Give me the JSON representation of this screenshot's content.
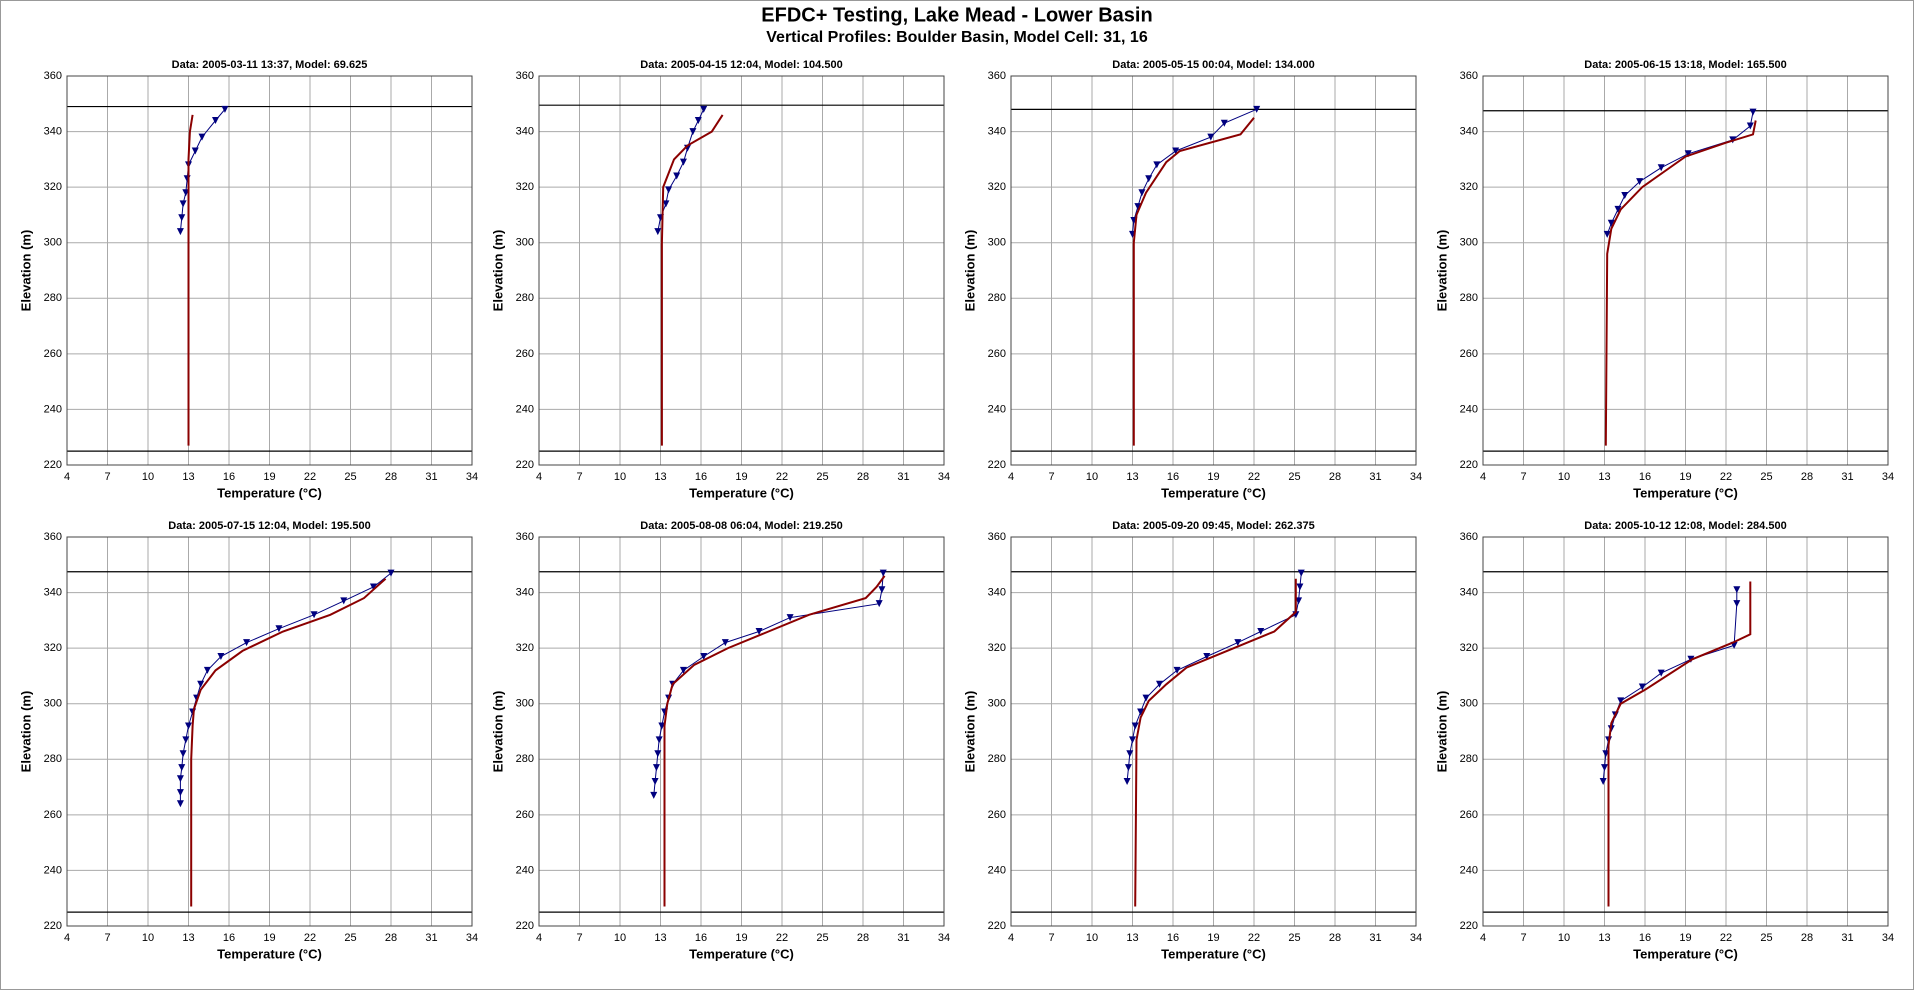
{
  "header": {
    "title": "EFDC+ Testing, Lake Mead - Lower Basin",
    "subtitle": "Vertical Profiles: Boulder Basin, Model Cell: 31, 16"
  },
  "chart_data": [
    {
      "type": "line",
      "title": "Data: 2005-03-11 13:37, Model: 69.625",
      "xlabel": "Temperature (°C)",
      "ylabel": "Elevation (m)",
      "xlim": [
        4,
        34
      ],
      "ylim": [
        220,
        360
      ],
      "xticks": [
        4,
        7,
        10,
        13,
        16,
        19,
        22,
        25,
        28,
        31,
        34
      ],
      "yticks": [
        220,
        240,
        260,
        280,
        300,
        320,
        340,
        360
      ],
      "grid": true,
      "reference_lines": [
        349,
        225
      ],
      "series": [
        {
          "color": "#00007f",
          "marker": "triangle-down",
          "x": [
            15.7,
            15.0,
            14.0,
            13.5,
            13.0,
            12.9,
            12.8,
            12.6,
            12.5,
            12.4
          ],
          "y": [
            348,
            344,
            338,
            333,
            328,
            323,
            318,
            314,
            309,
            304
          ]
        },
        {
          "color": "#8b0000",
          "x": [
            13.3,
            13.1,
            13.0,
            13.0,
            13.0
          ],
          "y": [
            346,
            340,
            330,
            300,
            227
          ]
        }
      ]
    },
    {
      "type": "line",
      "title": "Data: 2005-04-15 12:04, Model: 104.500",
      "xlabel": "Temperature (°C)",
      "ylabel": "Elevation (m)",
      "xlim": [
        4,
        34
      ],
      "ylim": [
        220,
        360
      ],
      "xticks": [
        4,
        7,
        10,
        13,
        16,
        19,
        22,
        25,
        28,
        31,
        34
      ],
      "yticks": [
        220,
        240,
        260,
        280,
        300,
        320,
        340,
        360
      ],
      "grid": true,
      "reference_lines": [
        349.5,
        225
      ],
      "series": [
        {
          "color": "#00007f",
          "marker": "triangle-down",
          "x": [
            16.2,
            15.8,
            15.4,
            15.0,
            14.7,
            14.2,
            13.6,
            13.4,
            13.0,
            12.8
          ],
          "y": [
            348,
            344,
            340,
            334,
            329,
            324,
            319,
            314,
            309,
            304
          ]
        },
        {
          "color": "#8b0000",
          "x": [
            17.6,
            16.8,
            15.0,
            14.0,
            13.2,
            13.1,
            13.1
          ],
          "y": [
            346,
            340,
            335,
            330,
            320,
            300,
            227
          ]
        }
      ]
    },
    {
      "type": "line",
      "title": "Data: 2005-05-15 00:04, Model: 134.000",
      "xlabel": "Temperature (°C)",
      "ylabel": "Elevation (m)",
      "xlim": [
        4,
        34
      ],
      "ylim": [
        220,
        360
      ],
      "xticks": [
        4,
        7,
        10,
        13,
        16,
        19,
        22,
        25,
        28,
        31,
        34
      ],
      "yticks": [
        220,
        240,
        260,
        280,
        300,
        320,
        340,
        360
      ],
      "grid": true,
      "reference_lines": [
        348,
        225
      ],
      "series": [
        {
          "color": "#00007f",
          "marker": "triangle-down",
          "x": [
            22.2,
            19.8,
            18.8,
            16.2,
            14.8,
            14.2,
            13.7,
            13.4,
            13.1,
            13.0
          ],
          "y": [
            348,
            343,
            338,
            333,
            328,
            323,
            318,
            313,
            308,
            303
          ]
        },
        {
          "color": "#8b0000",
          "x": [
            22.0,
            21.0,
            16.5,
            15.5,
            14.0,
            13.3,
            13.1,
            13.1
          ],
          "y": [
            345,
            339,
            333,
            329,
            318,
            310,
            300,
            227
          ]
        }
      ]
    },
    {
      "type": "line",
      "title": "Data: 2005-06-15 13:18, Model: 165.500",
      "xlabel": "Temperature (°C)",
      "ylabel": "Elevation (m)",
      "xlim": [
        4,
        34
      ],
      "ylim": [
        220,
        360
      ],
      "xticks": [
        4,
        7,
        10,
        13,
        16,
        19,
        22,
        25,
        28,
        31,
        34
      ],
      "yticks": [
        220,
        240,
        260,
        280,
        300,
        320,
        340,
        360
      ],
      "grid": true,
      "reference_lines": [
        347.5,
        225
      ],
      "series": [
        {
          "color": "#00007f",
          "marker": "triangle-down",
          "x": [
            24.0,
            23.8,
            22.5,
            19.2,
            17.2,
            15.6,
            14.5,
            14.0,
            13.5,
            13.2
          ],
          "y": [
            347,
            342,
            337,
            332,
            327,
            322,
            317,
            312,
            307,
            303
          ]
        },
        {
          "color": "#8b0000",
          "x": [
            24.2,
            24.0,
            22.0,
            19.0,
            15.8,
            14.2,
            13.5,
            13.2,
            13.1
          ],
          "y": [
            344,
            339,
            336,
            331,
            320,
            312,
            305,
            296,
            227
          ]
        }
      ]
    },
    {
      "type": "line",
      "title": "Data: 2005-07-15 12:04, Model: 195.500",
      "xlabel": "Temperature (°C)",
      "ylabel": "Elevation (m)",
      "xlim": [
        4,
        34
      ],
      "ylim": [
        220,
        360
      ],
      "xticks": [
        4,
        7,
        10,
        13,
        16,
        19,
        22,
        25,
        28,
        31,
        34
      ],
      "yticks": [
        220,
        240,
        260,
        280,
        300,
        320,
        340,
        360
      ],
      "grid": true,
      "reference_lines": [
        347.5,
        225
      ],
      "series": [
        {
          "color": "#00007f",
          "marker": "triangle-down",
          "x": [
            28.0,
            26.7,
            24.5,
            22.3,
            19.7,
            17.3,
            15.4,
            14.4,
            13.9,
            13.6,
            13.3,
            13.0,
            12.8,
            12.6,
            12.5,
            12.4,
            12.4,
            12.4
          ],
          "y": [
            347,
            342,
            337,
            332,
            327,
            322,
            317,
            312,
            307,
            302,
            297,
            292,
            287,
            282,
            277,
            273,
            268,
            264
          ]
        },
        {
          "color": "#8b0000",
          "x": [
            27.6,
            26.0,
            23.5,
            20.0,
            17.0,
            15.0,
            13.9,
            13.4,
            13.3,
            13.2,
            13.2
          ],
          "y": [
            345,
            338,
            332,
            326,
            319,
            312,
            305,
            298,
            292,
            280,
            227
          ]
        }
      ]
    },
    {
      "type": "line",
      "title": "Data: 2005-08-08 06:04, Model: 219.250",
      "xlabel": "Temperature (°C)",
      "ylabel": "Elevation (m)",
      "xlim": [
        4,
        34
      ],
      "ylim": [
        220,
        360
      ],
      "xticks": [
        4,
        7,
        10,
        13,
        16,
        19,
        22,
        25,
        28,
        31,
        34
      ],
      "yticks": [
        220,
        240,
        260,
        280,
        300,
        320,
        340,
        360
      ],
      "grid": true,
      "reference_lines": [
        347.5,
        225
      ],
      "series": [
        {
          "color": "#00007f",
          "marker": "triangle-down",
          "x": [
            29.5,
            29.4,
            29.2,
            22.6,
            20.3,
            17.8,
            16.2,
            14.7,
            13.9,
            13.6,
            13.3,
            13.1,
            12.9,
            12.8,
            12.7,
            12.6,
            12.5
          ],
          "y": [
            347,
            341,
            336,
            331,
            326,
            322,
            317,
            312,
            307,
            302,
            297,
            292,
            287,
            282,
            277,
            272,
            267
          ]
        },
        {
          "color": "#8b0000",
          "x": [
            29.6,
            29.0,
            28.2,
            24.0,
            21.0,
            18.0,
            15.5,
            13.9,
            13.5,
            13.3,
            13.3
          ],
          "y": [
            346,
            342,
            338,
            332,
            326,
            320,
            314,
            307,
            300,
            292,
            227
          ]
        }
      ]
    },
    {
      "type": "line",
      "title": "Data: 2005-09-20 09:45, Model: 262.375",
      "xlabel": "Temperature (°C)",
      "ylabel": "Elevation (m)",
      "xlim": [
        4,
        34
      ],
      "ylim": [
        220,
        360
      ],
      "xticks": [
        4,
        7,
        10,
        13,
        16,
        19,
        22,
        25,
        28,
        31,
        34
      ],
      "yticks": [
        220,
        240,
        260,
        280,
        300,
        320,
        340,
        360
      ],
      "grid": true,
      "reference_lines": [
        347.5,
        225
      ],
      "series": [
        {
          "color": "#00007f",
          "marker": "triangle-down",
          "x": [
            25.5,
            25.4,
            25.3,
            25.1,
            22.5,
            20.8,
            18.5,
            16.3,
            15.0,
            14.0,
            13.6,
            13.2,
            13.0,
            12.8,
            12.7,
            12.6
          ],
          "y": [
            347,
            342,
            337,
            332,
            326,
            322,
            317,
            312,
            307,
            302,
            297,
            292,
            287,
            282,
            277,
            272
          ]
        },
        {
          "color": "#8b0000",
          "x": [
            25.1,
            25.1,
            23.5,
            20.0,
            17.0,
            15.5,
            14.2,
            13.6,
            13.3,
            13.2
          ],
          "y": [
            345,
            333,
            326,
            319,
            313,
            307,
            301,
            295,
            287,
            227
          ]
        }
      ]
    },
    {
      "type": "line",
      "title": "Data: 2005-10-12 12:08, Model: 284.500",
      "xlabel": "Temperature (°C)",
      "ylabel": "Elevation (m)",
      "xlim": [
        4,
        34
      ],
      "ylim": [
        220,
        360
      ],
      "xticks": [
        4,
        7,
        10,
        13,
        16,
        19,
        22,
        25,
        28,
        31,
        34
      ],
      "yticks": [
        220,
        240,
        260,
        280,
        300,
        320,
        340,
        360
      ],
      "grid": true,
      "reference_lines": [
        347.5,
        225
      ],
      "series": [
        {
          "color": "#00007f",
          "marker": "triangle-down",
          "x": [
            22.8,
            22.8,
            22.6,
            19.4,
            17.2,
            15.8,
            14.2,
            13.8,
            13.5,
            13.3,
            13.1,
            13.0,
            12.9
          ],
          "y": [
            341,
            336,
            321,
            316,
            311,
            306,
            301,
            296,
            291,
            287,
            282,
            277,
            272
          ]
        },
        {
          "color": "#8b0000",
          "x": [
            23.8,
            23.8,
            22.5,
            19.5,
            16.0,
            14.2,
            13.5,
            13.3,
            13.3
          ],
          "y": [
            344,
            325,
            322,
            316,
            305,
            300,
            293,
            285,
            227
          ]
        }
      ]
    }
  ]
}
